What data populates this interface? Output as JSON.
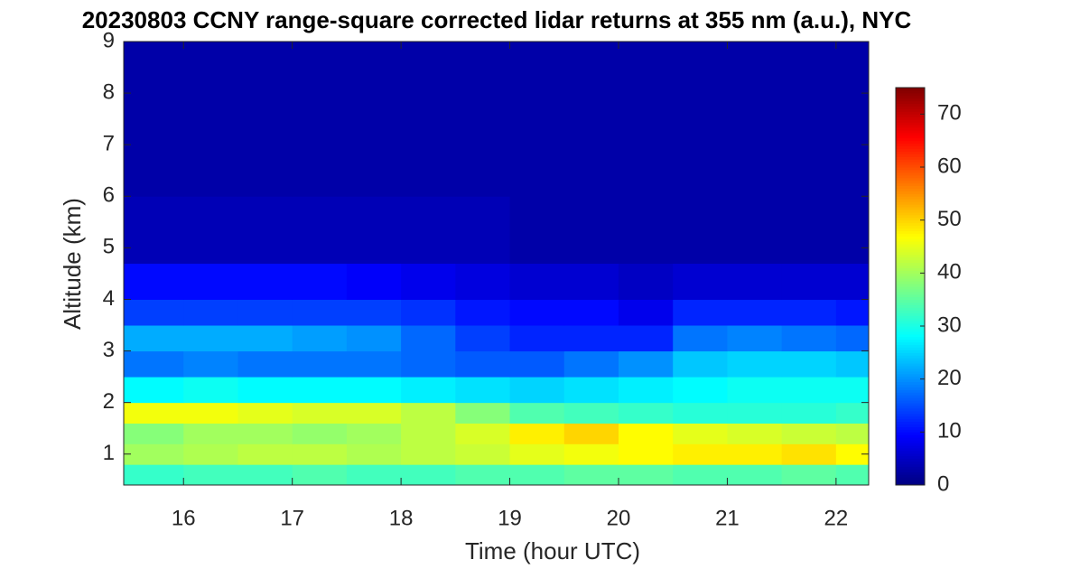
{
  "chart_data": {
    "type": "heatmap",
    "title": "20230803 CCNY range-square corrected lidar returns at 355 nm (a.u.), NYC",
    "x_label": "Time (hour UTC)",
    "y_label": "Altitude (km)",
    "colormap": "jet",
    "x_edges": [
      15.45,
      16,
      16.5,
      17,
      17.5,
      18,
      18.5,
      19,
      19.5,
      20,
      20.5,
      21,
      21.5,
      22,
      22.3
    ],
    "y_edges": [
      0.4,
      0.8,
      1.2,
      1.6,
      2.0,
      2.5,
      3.0,
      3.5,
      4.0,
      4.7,
      6,
      9
    ],
    "z": [
      [
        32,
        33,
        33,
        34,
        33,
        33,
        34,
        34,
        35,
        35,
        34,
        34,
        35,
        34
      ],
      [
        40,
        41,
        42,
        42,
        41,
        42,
        43,
        45,
        46,
        47,
        48,
        48,
        49,
        47
      ],
      [
        38,
        40,
        40,
        39,
        40,
        42,
        44,
        48,
        50,
        47,
        45,
        44,
        43,
        42
      ],
      [
        46,
        46,
        45,
        44,
        44,
        42,
        38,
        34,
        33,
        32,
        31,
        31,
        31,
        32
      ],
      [
        28,
        29,
        28,
        28,
        28,
        27,
        26,
        25,
        26,
        27,
        28,
        29,
        29,
        29
      ],
      [
        18,
        19,
        18,
        18,
        18,
        17,
        16,
        16,
        18,
        20,
        24,
        25,
        25,
        24
      ],
      [
        22,
        22,
        22,
        21,
        20,
        17,
        14,
        12,
        12,
        12,
        18,
        19,
        18,
        17
      ],
      [
        14,
        14,
        14,
        14,
        14,
        13,
        11,
        10,
        10,
        8,
        12,
        12,
        12,
        11
      ],
      [
        10,
        10,
        10,
        10,
        9,
        8,
        7,
        6,
        6,
        5,
        6,
        6,
        6,
        6
      ],
      [
        4,
        4,
        4,
        4,
        4,
        4,
        4,
        3,
        3,
        3,
        3,
        3,
        3,
        3
      ],
      [
        3,
        3,
        3,
        3,
        3,
        3,
        3,
        3,
        3,
        3,
        3,
        3,
        3,
        3
      ]
    ],
    "xlim": [
      15.45,
      22.3
    ],
    "xticks": [
      16,
      17,
      18,
      19,
      20,
      21,
      22
    ],
    "ylim": [
      0.4,
      9
    ],
    "yticks": [
      1,
      2,
      3,
      4,
      5,
      6,
      7,
      8,
      9
    ],
    "clim": [
      0,
      75
    ],
    "cticks": [
      0,
      10,
      20,
      30,
      40,
      50,
      60,
      70
    ]
  }
}
